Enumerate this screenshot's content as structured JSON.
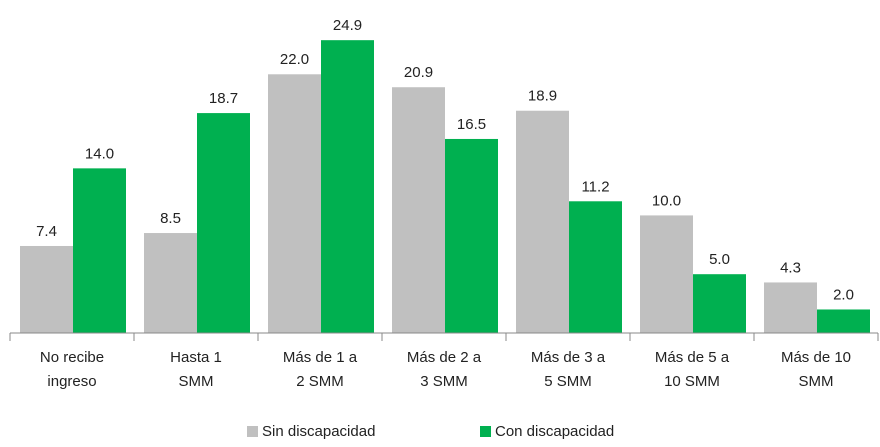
{
  "chart_data": {
    "type": "bar",
    "categories": [
      [
        "No recibe",
        "ingreso"
      ],
      [
        "Hasta 1",
        "SMM"
      ],
      [
        "Más de 1 a",
        "2 SMM"
      ],
      [
        "Más de 2 a",
        "3 SMM"
      ],
      [
        "Más de 3 a",
        "5 SMM"
      ],
      [
        "Más de 5 a",
        "10 SMM"
      ],
      [
        "Más de 10",
        "SMM"
      ]
    ],
    "series": [
      {
        "name": "Sin discapacidad",
        "color": "#c0c0c0",
        "values": [
          7.4,
          8.5,
          22.0,
          20.9,
          18.9,
          10.0,
          4.3
        ],
        "value_labels": [
          "7.4",
          "8.5",
          "22.0",
          "20.9",
          "18.9",
          "10.0",
          "4.3"
        ]
      },
      {
        "name": "Con discapacidad",
        "color": "#00b050",
        "values": [
          14.0,
          18.7,
          24.9,
          16.5,
          11.2,
          5.0,
          2.0
        ],
        "value_labels": [
          "14.0",
          "18.7",
          "24.9",
          "16.5",
          "11.2",
          "5.0",
          "2.0"
        ]
      }
    ],
    "ylim": [
      0,
      25
    ],
    "legend": "bottom"
  }
}
